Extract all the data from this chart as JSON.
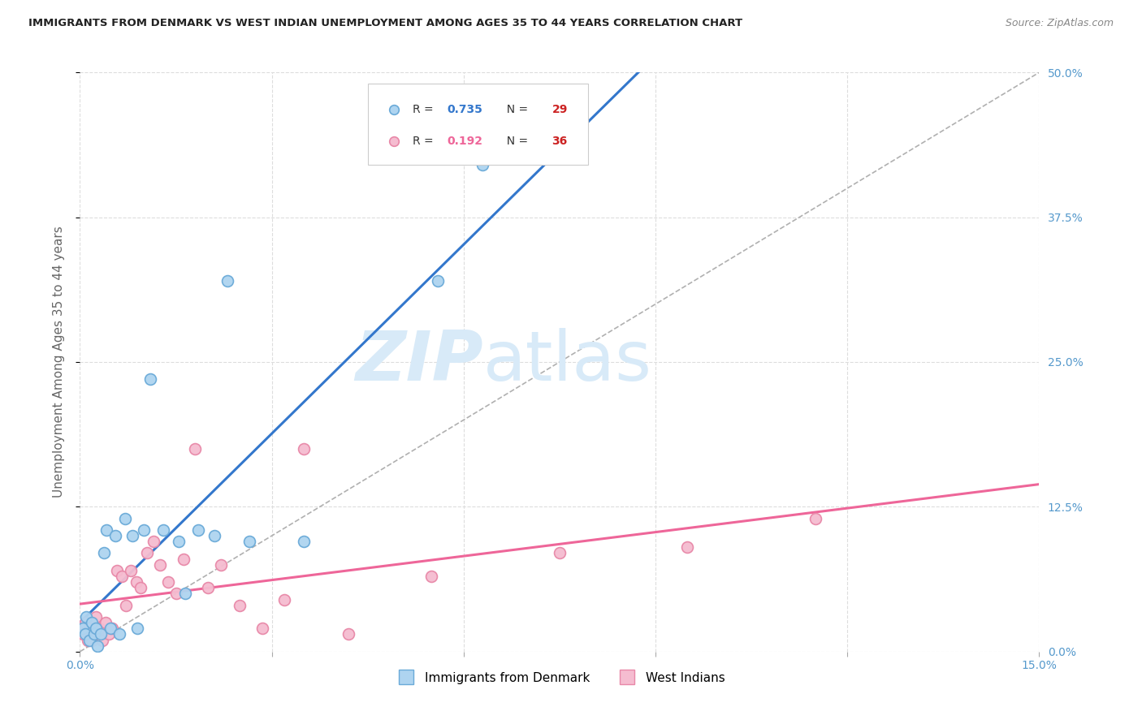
{
  "title": "IMMIGRANTS FROM DENMARK VS WEST INDIAN UNEMPLOYMENT AMONG AGES 35 TO 44 YEARS CORRELATION CHART",
  "source": "Source: ZipAtlas.com",
  "ylabel": "Unemployment Among Ages 35 to 44 years",
  "xlim": [
    0.0,
    15.0
  ],
  "ylim": [
    0.0,
    50.0
  ],
  "yticks": [
    0.0,
    12.5,
    25.0,
    37.5,
    50.0
  ],
  "xticks": [
    0.0,
    3.0,
    6.0,
    9.0,
    12.0,
    15.0
  ],
  "denmark_color": "#aed4f0",
  "denmark_edge_color": "#6aaad8",
  "westindian_color": "#f5bcd0",
  "westindian_edge_color": "#e888a8",
  "denmark_line_color": "#3377cc",
  "westindian_line_color": "#ee6699",
  "denmark_R": 0.735,
  "denmark_N": 29,
  "westindian_R": 0.192,
  "westindian_N": 36,
  "denmark_x": [
    0.05,
    0.08,
    0.1,
    0.15,
    0.18,
    0.22,
    0.25,
    0.28,
    0.32,
    0.38,
    0.42,
    0.48,
    0.55,
    0.62,
    0.7,
    0.82,
    0.9,
    1.0,
    1.1,
    1.3,
    1.55,
    1.65,
    1.85,
    2.1,
    2.3,
    2.65,
    3.5,
    5.6,
    6.3
  ],
  "denmark_y": [
    2.0,
    1.5,
    3.0,
    1.0,
    2.5,
    1.5,
    2.0,
    0.5,
    1.5,
    8.5,
    10.5,
    2.0,
    10.0,
    1.5,
    11.5,
    10.0,
    2.0,
    10.5,
    23.5,
    10.5,
    9.5,
    5.0,
    10.5,
    10.0,
    32.0,
    9.5,
    9.5,
    32.0,
    42.0
  ],
  "westindian_x": [
    0.05,
    0.08,
    0.12,
    0.15,
    0.18,
    0.22,
    0.25,
    0.3,
    0.35,
    0.4,
    0.45,
    0.5,
    0.58,
    0.65,
    0.72,
    0.8,
    0.88,
    0.95,
    1.05,
    1.15,
    1.25,
    1.38,
    1.5,
    1.62,
    1.8,
    2.0,
    2.2,
    2.5,
    2.85,
    3.2,
    3.5,
    4.2,
    5.5,
    7.5,
    9.5,
    11.5
  ],
  "westindian_y": [
    1.5,
    2.5,
    1.0,
    2.0,
    1.0,
    1.5,
    3.0,
    2.0,
    1.0,
    2.5,
    1.5,
    2.0,
    7.0,
    6.5,
    4.0,
    7.0,
    6.0,
    5.5,
    8.5,
    9.5,
    7.5,
    6.0,
    5.0,
    8.0,
    17.5,
    5.5,
    7.5,
    4.0,
    2.0,
    4.5,
    17.5,
    1.5,
    6.5,
    8.5,
    9.0,
    11.5
  ],
  "background_color": "#ffffff",
  "grid_color": "#dddddd",
  "title_color": "#222222",
  "watermark_zip": "ZIP",
  "watermark_atlas": "atlas",
  "watermark_color": "#d8eaf8",
  "legend_box_color": "#ffffff",
  "legend_box_edge": "#cccccc",
  "legend_N_color": "#cc2222",
  "source_color": "#888888"
}
